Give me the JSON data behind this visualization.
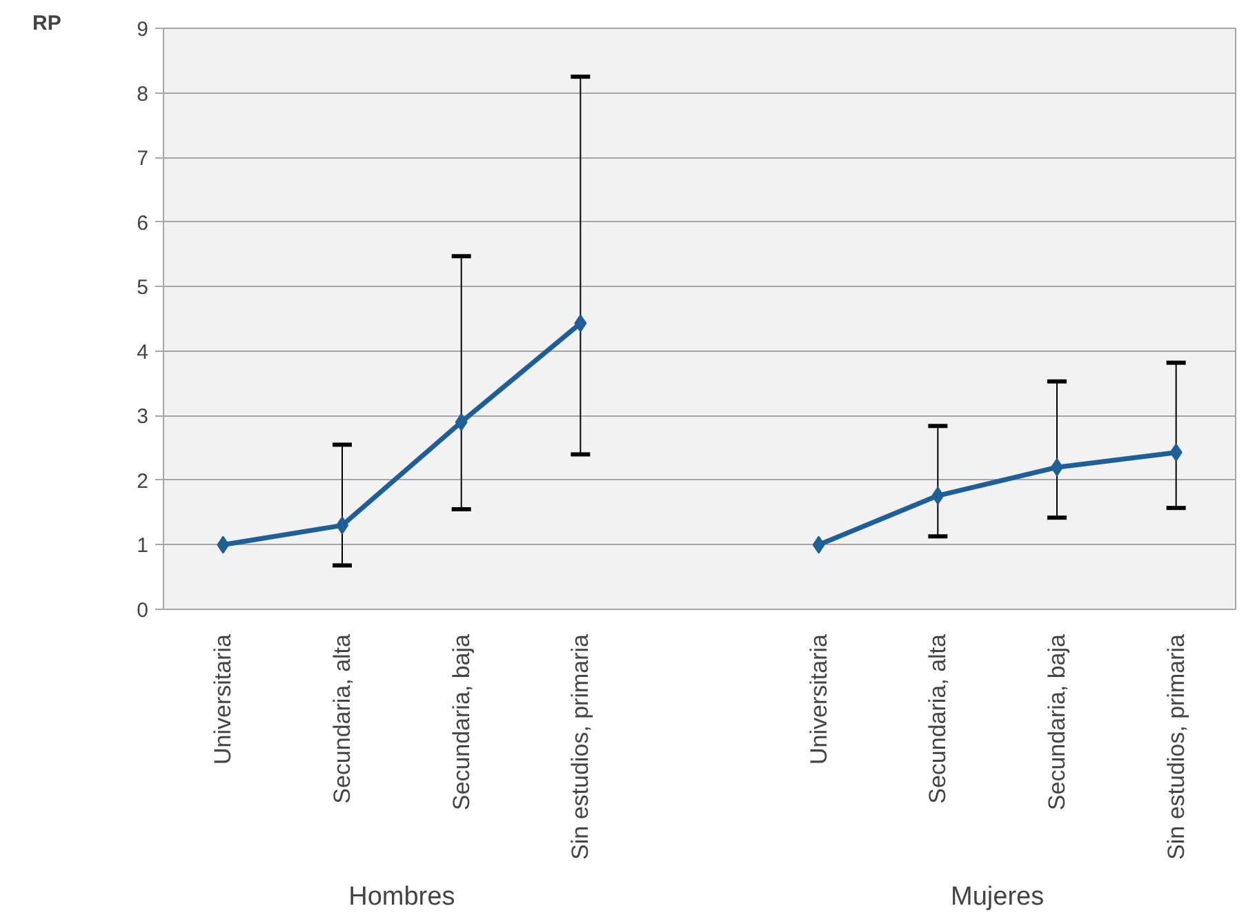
{
  "chart_data": {
    "type": "line",
    "ylabel": "RP",
    "categories": [
      "Universitaria",
      "Secundaria, alta",
      "Secundaria, baja",
      "Sin estudios, primaria",
      null,
      "Universitaria",
      "Secundaria, alta",
      "Secundaria, baja",
      "Sin estudios, primaria"
    ],
    "series": [
      {
        "color": "#1f5f98",
        "values": [
          1.0,
          1.3,
          2.9,
          4.43,
          null,
          1.0,
          1.76,
          2.2,
          2.43
        ],
        "errors": [
          null,
          [
            0.68,
            2.55
          ],
          [
            1.55,
            5.47
          ],
          [
            2.4,
            8.25
          ],
          null,
          null,
          [
            1.13,
            2.84
          ],
          [
            1.42,
            3.53
          ],
          [
            1.57,
            3.82
          ]
        ]
      }
    ],
    "ylim": [
      0,
      9
    ],
    "yticks": [
      0,
      1,
      2,
      3,
      4,
      5,
      6,
      7,
      8,
      9
    ],
    "grid": "y",
    "marker": "diamond",
    "line_style": "solid",
    "annotations": [
      "Hombres",
      "Mujeres"
    ]
  }
}
